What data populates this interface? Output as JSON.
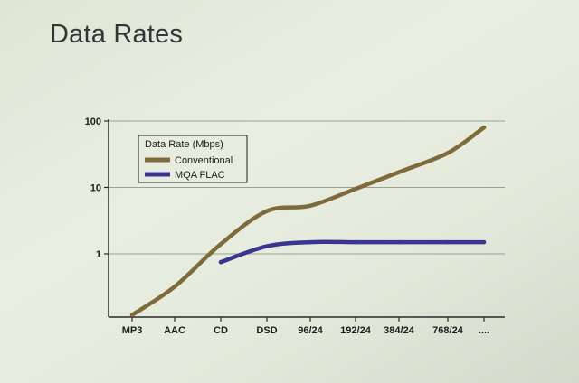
{
  "slide": {
    "title": "Data Rates"
  },
  "chart_data": {
    "type": "line",
    "title": "",
    "xlabel": "",
    "ylabel": "",
    "y_scale": "log",
    "ylim": [
      0.1,
      100
    ],
    "y_ticks": [
      {
        "value": 1,
        "label": "1"
      },
      {
        "value": 10,
        "label": "10"
      },
      {
        "value": 100,
        "label": "100"
      }
    ],
    "categories": [
      "MP3",
      "AAC",
      "CD",
      "DSD",
      "96/24",
      "192/24",
      "384/24",
      "768/24",
      "...."
    ],
    "grid": "horizontal",
    "legend": {
      "title": "Data Rate (Mbps)",
      "placement": "top-left"
    },
    "series": [
      {
        "name": "Conventional",
        "color": "#7f6a3c",
        "values": [
          0.12,
          0.32,
          1.4,
          4.4,
          5.3,
          9.5,
          17,
          33,
          80
        ]
      },
      {
        "name": "MQA FLAC",
        "color": "#3a3590",
        "values": [
          null,
          null,
          0.75,
          1.3,
          1.5,
          1.5,
          1.5,
          1.5,
          1.5
        ]
      }
    ]
  }
}
